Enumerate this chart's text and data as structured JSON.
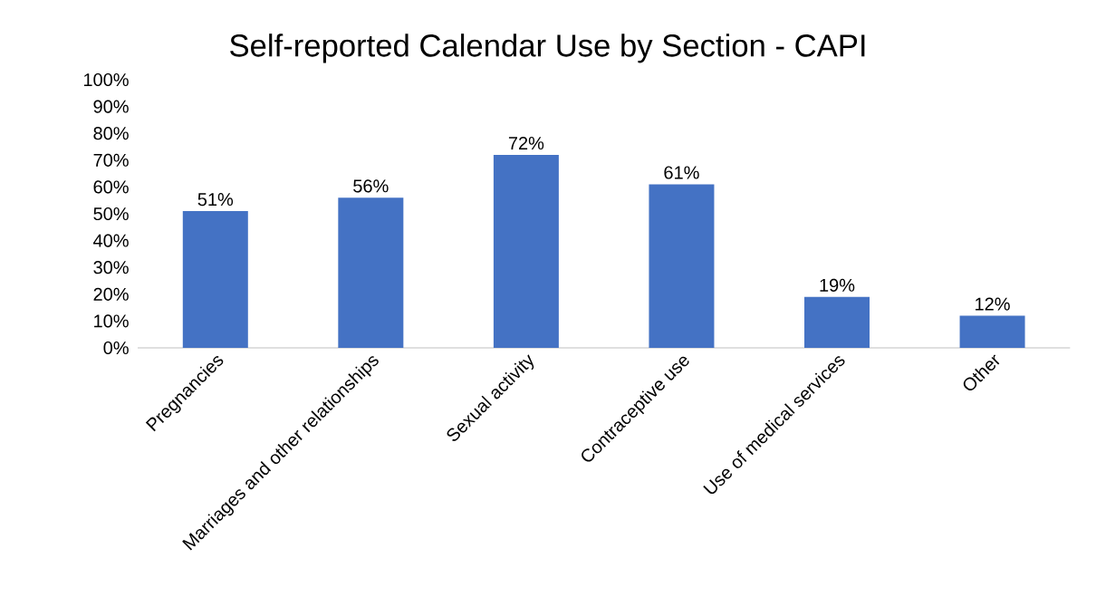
{
  "chart_data": {
    "type": "bar",
    "title": "Self-reported Calendar Use by Section - CAPI",
    "categories": [
      "Pregnancies",
      "Marriages and other relationships",
      "Sexual activity",
      "Contraceptive use",
      "Use of medical services",
      "Other"
    ],
    "values": [
      51,
      56,
      72,
      61,
      19,
      12
    ],
    "value_labels": [
      "51%",
      "56%",
      "72%",
      "61%",
      "19%",
      "12%"
    ],
    "color": "#4472c4",
    "ylim": [
      0,
      100
    ],
    "yticks": [
      {
        "value": 0,
        "label": "0%"
      },
      {
        "value": 10,
        "label": "10%"
      },
      {
        "value": 20,
        "label": "20%"
      },
      {
        "value": 30,
        "label": "30%"
      },
      {
        "value": 40,
        "label": "40%"
      },
      {
        "value": 50,
        "label": "50%"
      },
      {
        "value": 60,
        "label": "60%"
      },
      {
        "value": 70,
        "label": "70%"
      },
      {
        "value": 80,
        "label": "80%"
      },
      {
        "value": 90,
        "label": "90%"
      },
      {
        "value": 100,
        "label": "100%"
      }
    ],
    "grid": false
  }
}
